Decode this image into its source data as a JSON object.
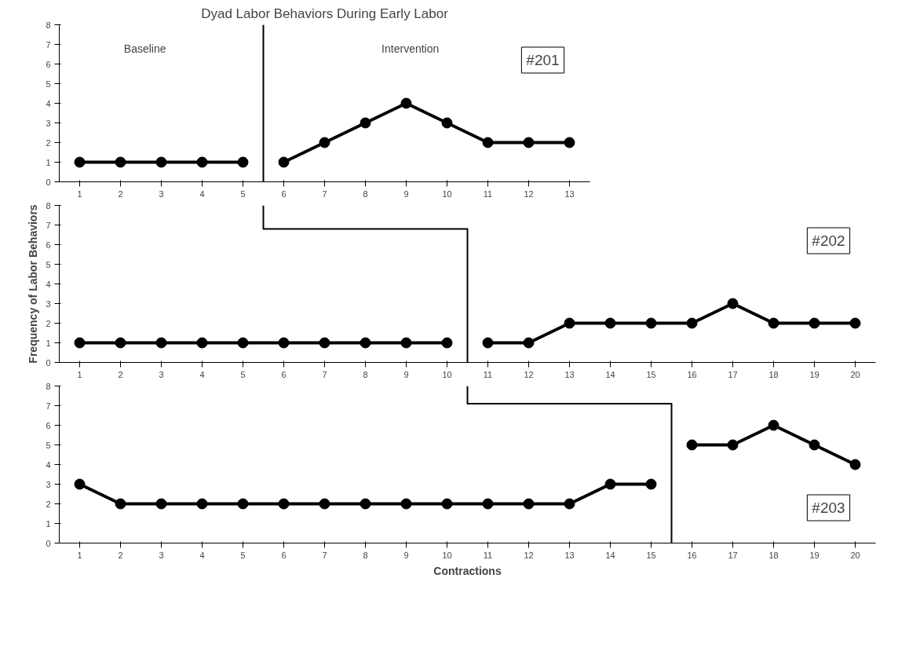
{
  "chart_data": [
    {
      "type": "line",
      "title": "Dyad Labor Behaviors During Early Labor",
      "xlim": [
        0.5,
        13.5
      ],
      "ylim": [
        0,
        8
      ],
      "xticks": [
        1,
        2,
        3,
        4,
        5,
        6,
        7,
        8,
        9,
        10,
        11,
        12,
        13
      ],
      "yticks": [
        0,
        1,
        2,
        3,
        4,
        5,
        6,
        7,
        8
      ],
      "grid": false,
      "marker": "circle",
      "series": [
        {
          "color": "#000000",
          "x": [
            1,
            2,
            3,
            4,
            5
          ],
          "values": [
            1,
            1,
            1,
            1,
            1
          ]
        },
        {
          "color": "#000000",
          "x": [
            6,
            7,
            8,
            9,
            10,
            11,
            12,
            13
          ],
          "values": [
            1,
            2,
            3,
            4,
            3,
            2,
            2,
            2
          ]
        }
      ],
      "ref_lines": [
        {
          "axis": "x",
          "value": 5.5,
          "color": "#000000"
        }
      ],
      "annotations": [
        "Baseline",
        "Intervention",
        "#201"
      ]
    },
    {
      "type": "line",
      "ylabel": "Frequency of Labor Behaviors",
      "xlim": [
        0.5,
        20.5
      ],
      "ylim": [
        0,
        8
      ],
      "xticks": [
        1,
        2,
        3,
        4,
        5,
        6,
        7,
        8,
        9,
        10,
        11,
        12,
        13,
        14,
        15,
        16,
        17,
        18,
        19,
        20
      ],
      "yticks": [
        0,
        1,
        2,
        3,
        4,
        5,
        6,
        7,
        8
      ],
      "grid": false,
      "marker": "circle",
      "series": [
        {
          "color": "#000000",
          "x": [
            1,
            2,
            3,
            4,
            5,
            6,
            7,
            8,
            9,
            10
          ],
          "values": [
            1,
            1,
            1,
            1,
            1,
            1,
            1,
            1,
            1,
            1
          ]
        },
        {
          "color": "#000000",
          "x": [
            11,
            12,
            13,
            14,
            15,
            16,
            17,
            18,
            19,
            20
          ],
          "values": [
            1,
            1,
            2,
            2,
            2,
            2,
            3,
            2,
            2,
            2
          ]
        },
        {
          "color": "#000000",
          "marker": "none",
          "x": [
            5.5,
            5.5,
            10.5,
            10.5
          ],
          "values": [
            8,
            6.8,
            6.8,
            0
          ]
        }
      ],
      "annotations": [
        "#202"
      ]
    },
    {
      "type": "line",
      "xlabel": "Contractions",
      "xlim": [
        0.5,
        20.5
      ],
      "ylim": [
        0,
        8
      ],
      "xticks": [
        1,
        2,
        3,
        4,
        5,
        6,
        7,
        8,
        9,
        10,
        11,
        12,
        13,
        14,
        15,
        16,
        17,
        18,
        19,
        20
      ],
      "yticks": [
        0,
        1,
        2,
        3,
        4,
        5,
        6,
        7,
        8
      ],
      "grid": false,
      "marker": "circle",
      "series": [
        {
          "color": "#000000",
          "x": [
            1,
            2,
            3,
            4,
            5,
            6,
            7,
            8,
            9,
            10,
            11,
            12,
            13,
            14,
            15
          ],
          "values": [
            3,
            2,
            2,
            2,
            2,
            2,
            2,
            2,
            2,
            2,
            2,
            2,
            2,
            3,
            3
          ]
        },
        {
          "color": "#000000",
          "x": [
            16,
            17,
            18,
            19,
            20
          ],
          "values": [
            5,
            5,
            6,
            5,
            4
          ]
        },
        {
          "color": "#000000",
          "marker": "none",
          "x": [
            10.5,
            10.5,
            15.5,
            15.5
          ],
          "values": [
            8,
            7.1,
            7.1,
            0
          ]
        }
      ],
      "annotations": [
        "#203"
      ]
    }
  ]
}
